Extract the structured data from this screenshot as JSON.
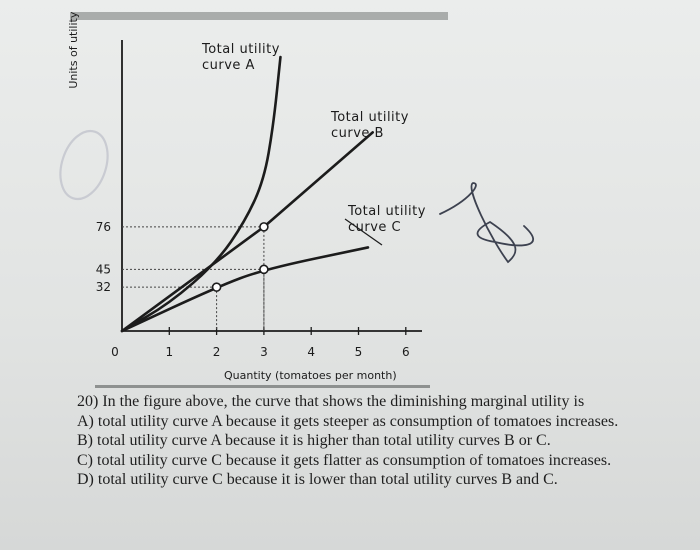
{
  "chart_data": {
    "type": "line",
    "xlabel": "Quantity (tomatoes per month)",
    "ylabel": "Units of utility",
    "x_ticks": [
      "0",
      "1",
      "2",
      "3",
      "4",
      "5",
      "6"
    ],
    "y_ticks": [
      "32",
      "45",
      "76"
    ],
    "xlim": [
      0,
      6
    ],
    "ylim": [
      0,
      220
    ],
    "series": [
      {
        "name": "Total utility curve A",
        "label_lines": [
          "Total utility",
          "curve A"
        ],
        "x": [
          0,
          1,
          2,
          2.6,
          3,
          3.2,
          3.35
        ],
        "y": [
          0,
          20,
          50,
          80,
          110,
          150,
          200
        ]
      },
      {
        "name": "Total utility curve B",
        "label_lines": [
          "Total utility",
          "curve B"
        ],
        "x": [
          0,
          3,
          5.3
        ],
        "y": [
          0,
          76,
          145
        ]
      },
      {
        "name": "Total utility curve C",
        "label_lines": [
          "Total utility",
          "curve C"
        ],
        "x": [
          0,
          2,
          3,
          5.2
        ],
        "y": [
          0,
          32,
          45,
          61
        ]
      }
    ],
    "points": [
      {
        "x": 2,
        "y": 32
      },
      {
        "x": 3,
        "y": 45
      },
      {
        "x": 3,
        "y": 76
      }
    ],
    "grid": false,
    "colors": {
      "ink": "#1c1c1c",
      "guide": "#444444"
    }
  },
  "question": {
    "stem": "20) In the figure above, the curve that shows the diminishing marginal utility is",
    "options": [
      "A) total utility curve A because it gets steeper as consumption of tomatoes increases.",
      "B) total utility curve A because it is higher than total utility curves B or C.",
      "C) total utility curve C because it gets flatter as consumption of tomatoes increases.",
      "D) total utility curve C because it is lower than total utility curves B and C."
    ]
  }
}
